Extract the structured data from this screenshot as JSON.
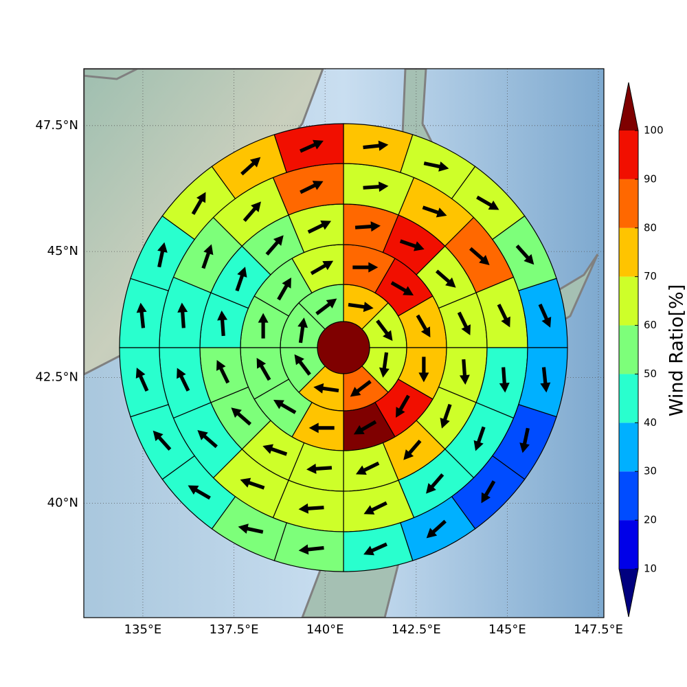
{
  "chart_data": {
    "type": "polar_sector_map",
    "xlim": [
      133.38,
      147.65
    ],
    "ylim": [
      37.73,
      48.63
    ],
    "xticks": [
      {
        "value": 135,
        "label": "135°E"
      },
      {
        "value": 137.5,
        "label": "137.5°E"
      },
      {
        "value": 140,
        "label": "140°E"
      },
      {
        "value": 142.5,
        "label": "142.5°E"
      },
      {
        "value": 145,
        "label": "145°E"
      },
      {
        "value": 147.5,
        "label": "147.5°E"
      }
    ],
    "yticks": [
      {
        "value": 40,
        "label": "40°N"
      },
      {
        "value": 42.5,
        "label": "42.5°N"
      },
      {
        "value": 45,
        "label": "45°N"
      },
      {
        "value": 47.5,
        "label": "47.5°N"
      }
    ],
    "grid": true,
    "center_value": 105,
    "rings": [
      {
        "values": [
          75,
          65,
          65,
          85,
          75,
          55,
          55,
          55
        ],
        "directions": [
          98,
          143,
          188,
          233,
          278,
          323,
          8,
          53
        ]
      },
      {
        "values": [
          85,
          95,
          75,
          75,
          95,
          105,
          75,
          55,
          55,
          55,
          55,
          65
        ],
        "directions": [
          90,
          120,
          150,
          180,
          210,
          240,
          270,
          300,
          330,
          0,
          30,
          60
        ]
      },
      {
        "values": [
          85,
          95,
          65,
          65,
          65,
          65,
          75,
          65,
          65,
          65,
          55,
          55,
          45,
          45,
          55,
          65
        ],
        "directions": [
          86,
          109,
          131,
          154,
          176,
          199,
          221,
          244,
          266,
          289,
          311,
          334,
          356,
          19,
          41,
          64
        ]
      },
      {
        "values": [
          65,
          75,
          85,
          65,
          45,
          45,
          45,
          65,
          65,
          65,
          45,
          45,
          45,
          55,
          65,
          85
        ],
        "directions": [
          86,
          109,
          131,
          154,
          176,
          199,
          221,
          244,
          266,
          289,
          311,
          334,
          356,
          19,
          41,
          64
        ]
      },
      {
        "values": [
          75,
          65,
          65,
          55,
          35,
          35,
          25,
          25,
          35,
          45,
          55,
          55,
          45,
          45,
          45,
          45,
          45,
          65,
          75,
          95
        ],
        "directions": [
          84,
          102,
          120,
          138,
          156,
          174,
          192,
          210,
          228,
          246,
          264,
          282,
          300,
          318,
          336,
          354,
          12,
          30,
          48,
          66
        ]
      }
    ],
    "colorbar": {
      "label": "Wind Ratio[%]",
      "levels": [
        10,
        20,
        30,
        40,
        50,
        60,
        70,
        80,
        90,
        100
      ],
      "colors": [
        "#00007f",
        "#0000e8",
        "#004cff",
        "#00b0ff",
        "#29ffce",
        "#7dff7a",
        "#ceff29",
        "#ffc400",
        "#ff6800",
        "#f10f00",
        "#7f0000"
      ],
      "extend": "both"
    }
  }
}
